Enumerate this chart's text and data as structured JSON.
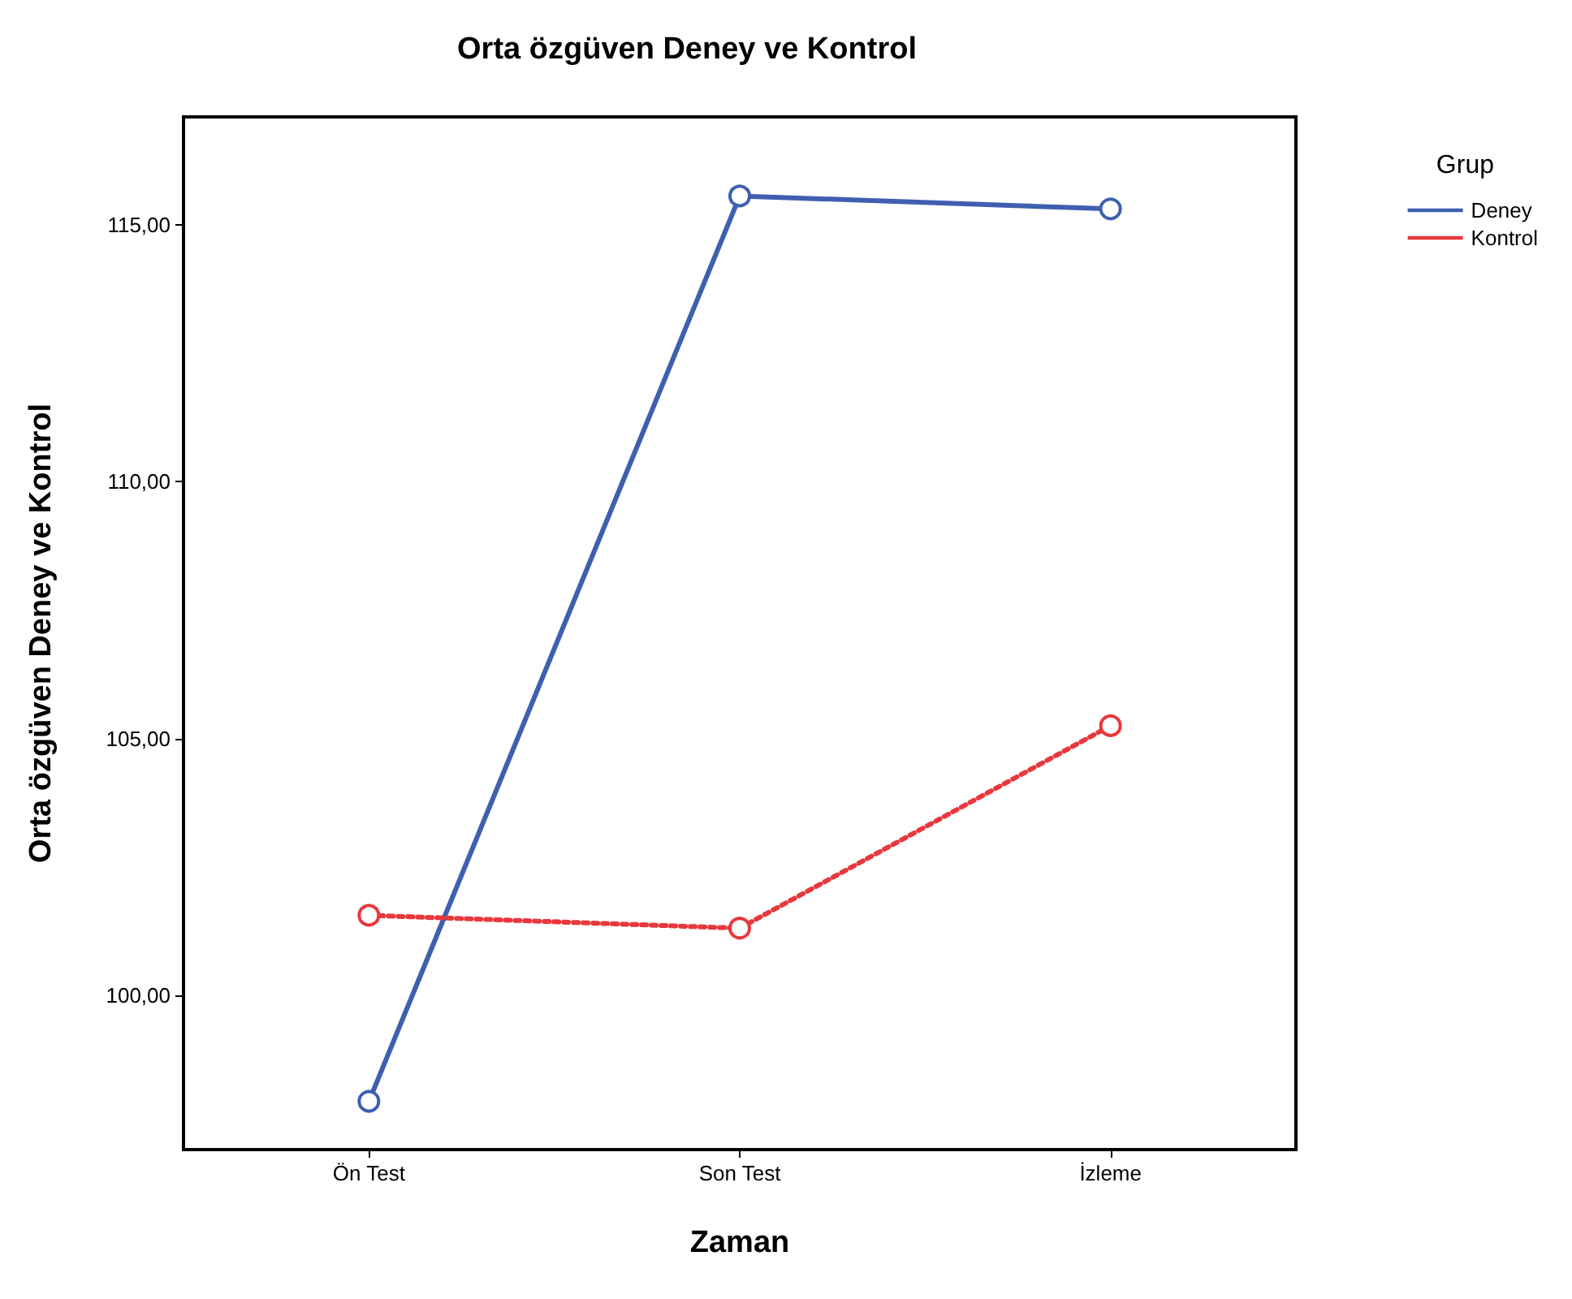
{
  "chart_data": {
    "type": "line",
    "title": "Orta özgüven Deney ve Kontrol",
    "xlabel": "Zaman",
    "ylabel": "Orta özgüven Deney ve Kontrol",
    "legend_title": "Grup",
    "legend": "top right",
    "marker": "circle",
    "grid": false,
    "categories": [
      "Ön Test",
      "Son Test",
      "İzleme"
    ],
    "ylim": [
      97,
      117.1
    ],
    "yticks": [
      {
        "value": 100,
        "label": "100,00"
      },
      {
        "value": 105,
        "label": "105,00"
      },
      {
        "value": 110,
        "label": "110,00"
      },
      {
        "value": 115,
        "label": "115,00"
      }
    ],
    "series": [
      {
        "name": "Deney",
        "color": "#3f5faf",
        "line_style": "solid",
        "values": [
          97.94,
          115.56,
          115.31
        ]
      },
      {
        "name": "Kontrol",
        "color": "#e8383d",
        "line_style": "dotted",
        "values": [
          101.56,
          101.31,
          105.25
        ]
      }
    ]
  }
}
